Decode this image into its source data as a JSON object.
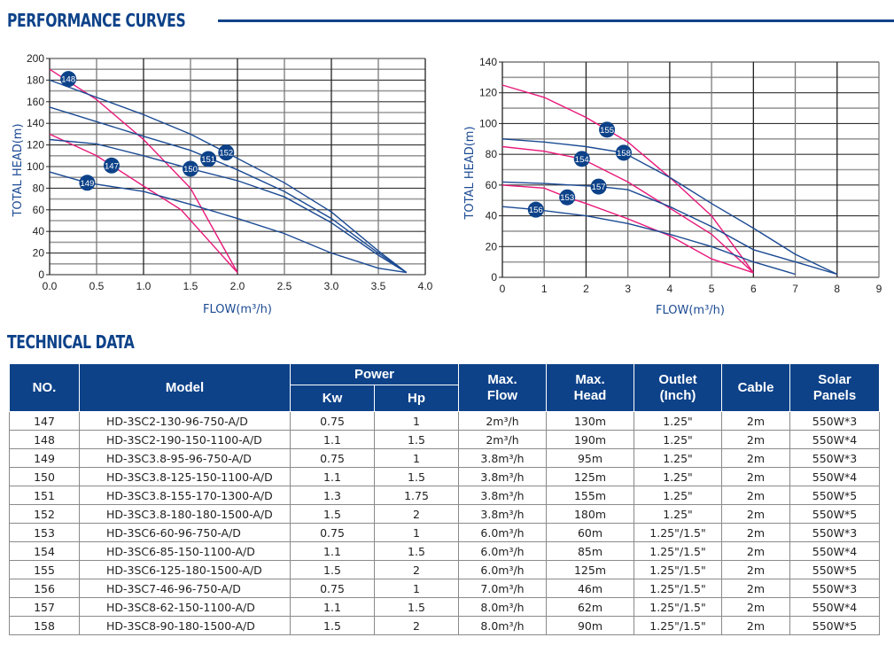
{
  "sections": {
    "performance_title": "PERFORMANCE CURVES",
    "technical_title": "TECHNICAL DATA"
  },
  "colors": {
    "brand_blue": "#0d4289",
    "curve_blue": "#1b4a93",
    "curve_pink": "#e8197a"
  },
  "chart_data": [
    {
      "type": "line",
      "title": "",
      "xlabel": "FLOW(m³/h)",
      "ylabel": "TOTAL HEAD(m)",
      "xlim": [
        0,
        4
      ],
      "ylim": [
        0,
        200
      ],
      "x_ticks": [
        "0.0",
        "0.5",
        "1.0",
        "1.5",
        "2.0",
        "2.5",
        "3.0",
        "3.5",
        "4.0"
      ],
      "y_ticks": [
        "0",
        "20",
        "40",
        "60",
        "80",
        "100",
        "120",
        "140",
        "160",
        "180",
        "200"
      ],
      "grid": true,
      "series": [
        {
          "name": "148",
          "color": "pink",
          "x": [
            0,
            0.5,
            1.0,
            1.5,
            2.0
          ],
          "y": [
            190,
            162,
            125,
            80,
            2
          ],
          "label_at": [
            0.2,
            181
          ]
        },
        {
          "name": "147",
          "color": "pink",
          "x": [
            0,
            0.5,
            1.0,
            1.4,
            2.0
          ],
          "y": [
            130,
            110,
            82,
            60,
            2
          ],
          "label_at": [
            0.66,
            101
          ]
        },
        {
          "name": "152",
          "color": "blue",
          "x": [
            0,
            1.0,
            1.5,
            1.88,
            2.5,
            3.0,
            3.5,
            3.8
          ],
          "y": [
            180,
            148,
            130,
            113,
            85,
            58,
            22,
            2
          ],
          "label_at": [
            1.88,
            113
          ]
        },
        {
          "name": "151",
          "color": "blue",
          "x": [
            0,
            1.0,
            1.5,
            2.0,
            2.5,
            3.0,
            3.5,
            3.8
          ],
          "y": [
            155,
            128,
            115,
            97,
            77,
            52,
            20,
            2
          ],
          "label_at": [
            1.69,
            107
          ]
        },
        {
          "name": "150",
          "color": "blue",
          "x": [
            0,
            0.5,
            1.0,
            1.5,
            2.0,
            2.5,
            3.0,
            3.5,
            3.8
          ],
          "y": [
            125,
            121,
            110,
            98,
            87,
            72,
            48,
            18,
            2
          ],
          "label_at": [
            1.5,
            98
          ]
        },
        {
          "name": "149",
          "color": "blue",
          "x": [
            0,
            0.4,
            1.0,
            1.5,
            2.0,
            2.5,
            3.0,
            3.5,
            3.8
          ],
          "y": [
            95,
            85,
            77,
            65,
            52,
            38,
            20,
            6,
            2
          ],
          "label_at": [
            0.4,
            85
          ]
        }
      ]
    },
    {
      "type": "line",
      "title": "",
      "xlabel": "FLOW(m³/h)",
      "ylabel": "TOTAL HEAD(m)",
      "xlim": [
        0,
        9
      ],
      "ylim": [
        0,
        140
      ],
      "x_ticks": [
        "0",
        "1",
        "2",
        "3",
        "4",
        "5",
        "6",
        "7",
        "8",
        "9"
      ],
      "y_ticks": [
        "0",
        "20",
        "40",
        "60",
        "80",
        "100",
        "120",
        "140"
      ],
      "grid": true,
      "series": [
        {
          "name": "155",
          "color": "pink",
          "x": [
            0,
            1,
            2,
            2.5,
            3,
            4,
            5,
            6
          ],
          "y": [
            125,
            117,
            104,
            96,
            88,
            65,
            40,
            3
          ],
          "label_at": [
            2.5,
            96
          ]
        },
        {
          "name": "154",
          "color": "pink",
          "x": [
            0,
            1,
            1.9,
            3,
            4,
            5,
            6
          ],
          "y": [
            85,
            82,
            77,
            62,
            45,
            28,
            3
          ],
          "label_at": [
            1.9,
            77
          ]
        },
        {
          "name": "153",
          "color": "pink",
          "x": [
            0,
            1,
            1.55,
            2,
            3,
            4,
            5,
            6
          ],
          "y": [
            60,
            58,
            52,
            48,
            38,
            27,
            12,
            3
          ],
          "label_at": [
            1.55,
            52
          ]
        },
        {
          "name": "158",
          "color": "blue",
          "x": [
            0,
            1,
            2,
            2.9,
            4,
            5,
            6,
            7,
            8
          ],
          "y": [
            90,
            88,
            85,
            81,
            65,
            48,
            32,
            15,
            2
          ],
          "label_at": [
            2.9,
            81
          ]
        },
        {
          "name": "157",
          "color": "blue",
          "x": [
            0,
            1,
            2.3,
            3,
            4,
            5,
            6,
            7,
            8
          ],
          "y": [
            62,
            61,
            59,
            57,
            46,
            33,
            18,
            10,
            2
          ],
          "label_at": [
            2.3,
            59
          ]
        },
        {
          "name": "156",
          "color": "blue",
          "x": [
            0,
            0.8,
            2,
            3,
            4,
            5,
            6,
            7
          ],
          "y": [
            46,
            44,
            40,
            35,
            28,
            20,
            10,
            2
          ],
          "label_at": [
            0.8,
            44
          ]
        }
      ]
    }
  ],
  "table": {
    "headers": {
      "no": "NO.",
      "model": "Model",
      "power": "Power",
      "kw": "Kw",
      "hp": "Hp",
      "max_flow_1": "Max.",
      "max_flow_2": "Flow",
      "max_head_1": "Max.",
      "max_head_2": "Head",
      "outlet_1": "Outlet",
      "outlet_2": "(Inch)",
      "cable": "Cable",
      "solar_1": "Solar",
      "solar_2": "Panels"
    },
    "rows": [
      {
        "no": "147",
        "model": "HD-3SC2-130-96-750-A/D",
        "kw": "0.75",
        "hp": "1",
        "flow": "2m³/h",
        "head": "130m",
        "outlet": "1.25\"",
        "cable": "2m",
        "solar": "550W*3"
      },
      {
        "no": "148",
        "model": "HD-3SC2-190-150-1100-A/D",
        "kw": "1.1",
        "hp": "1.5",
        "flow": "2m³/h",
        "head": "190m",
        "outlet": "1.25\"",
        "cable": "2m",
        "solar": "550W*4"
      },
      {
        "no": "149",
        "model": "HD-3SC3.8-95-96-750-A/D",
        "kw": "0.75",
        "hp": "1",
        "flow": "3.8m³/h",
        "head": "95m",
        "outlet": "1.25\"",
        "cable": "2m",
        "solar": "550W*3"
      },
      {
        "no": "150",
        "model": "HD-3SC3.8-125-150-1100-A/D",
        "kw": "1.1",
        "hp": "1.5",
        "flow": "3.8m³/h",
        "head": "125m",
        "outlet": "1.25\"",
        "cable": "2m",
        "solar": "550W*4"
      },
      {
        "no": "151",
        "model": "HD-3SC3.8-155-170-1300-A/D",
        "kw": "1.3",
        "hp": "1.75",
        "flow": "3.8m³/h",
        "head": "155m",
        "outlet": "1.25\"",
        "cable": "2m",
        "solar": "550W*5"
      },
      {
        "no": "152",
        "model": "HD-3SC3.8-180-180-1500-A/D",
        "kw": "1.5",
        "hp": "2",
        "flow": "3.8m³/h",
        "head": "180m",
        "outlet": "1.25\"",
        "cable": "2m",
        "solar": "550W*5"
      },
      {
        "no": "153",
        "model": "HD-3SC6-60-96-750-A/D",
        "kw": "0.75",
        "hp": "1",
        "flow": "6.0m³/h",
        "head": "60m",
        "outlet": "1.25\"/1.5\"",
        "cable": "2m",
        "solar": "550W*3"
      },
      {
        "no": "154",
        "model": "HD-3SC6-85-150-1100-A/D",
        "kw": "1.1",
        "hp": "1.5",
        "flow": "6.0m³/h",
        "head": "85m",
        "outlet": "1.25\"/1.5\"",
        "cable": "2m",
        "solar": "550W*4"
      },
      {
        "no": "155",
        "model": "HD-3SC6-125-180-1500-A/D",
        "kw": "1.5",
        "hp": "2",
        "flow": "6.0m³/h",
        "head": "125m",
        "outlet": "1.25\"/1.5\"",
        "cable": "2m",
        "solar": "550W*5"
      },
      {
        "no": "156",
        "model": "HD-3SC7-46-96-750-A/D",
        "kw": "0.75",
        "hp": "1",
        "flow": "7.0m³/h",
        "head": "46m",
        "outlet": "1.25\"/1.5\"",
        "cable": "2m",
        "solar": "550W*3"
      },
      {
        "no": "157",
        "model": "HD-3SC8-62-150-1100-A/D",
        "kw": "1.1",
        "hp": "1.5",
        "flow": "8.0m³/h",
        "head": "62m",
        "outlet": "1.25\"/1.5\"",
        "cable": "2m",
        "solar": "550W*4"
      },
      {
        "no": "158",
        "model": "HD-3SC8-90-180-1500-A/D",
        "kw": "1.5",
        "hp": "2",
        "flow": "8.0m³/h",
        "head": "90m",
        "outlet": "1.25\"/1.5\"",
        "cable": "2m",
        "solar": "550W*5"
      }
    ]
  }
}
